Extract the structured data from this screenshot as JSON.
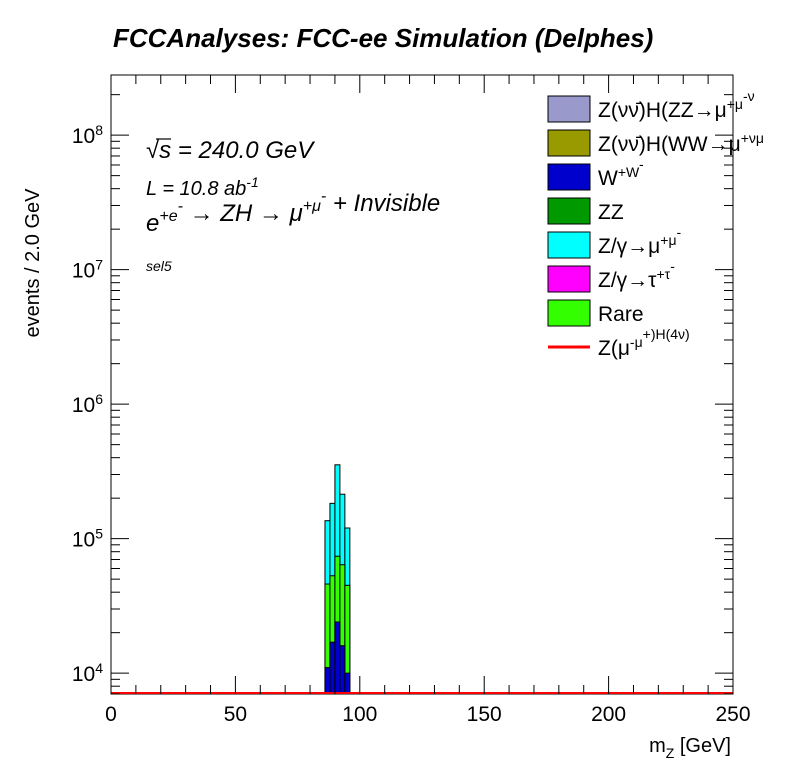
{
  "chart_data": {
    "type": "bar",
    "title": "FCCAnalyses: FCC-ee Simulation (Delphes)",
    "xlabel": "m_Z [GeV]",
    "ylabel": "events / 2.0 GeV",
    "xlim": [
      0,
      250
    ],
    "ylim": [
      7000,
      280000000
    ],
    "yscale": "log",
    "bin_width": 2.0,
    "x_ticks": [
      "0",
      "50",
      "100",
      "150",
      "200",
      "250"
    ],
    "y_ticks": [
      {
        "value": 10000,
        "label": "10^4"
      },
      {
        "value": 100000,
        "label": "10^5"
      },
      {
        "value": 1000000,
        "label": "10^6"
      },
      {
        "value": 10000000,
        "label": "10^7"
      },
      {
        "value": 100000000,
        "label": "10^8"
      }
    ],
    "annotations": {
      "sqrt_s": "√s = 240.0 GeV",
      "lumi": "L = 10.8 ab^-1",
      "process": "e^+e^- → ZH → μ^+μ^- + Invisible",
      "selection": "sel5"
    },
    "legend_position": "top-right",
    "bin_edges": [
      86,
      88,
      90,
      92,
      94,
      96
    ],
    "stack": [
      {
        "name": "W^+W^-",
        "color": "#0000cc",
        "values": [
          11000,
          17000,
          24000,
          16000,
          10000
        ]
      },
      {
        "name": "Rare",
        "color": "#33ff00",
        "values": [
          35000,
          36000,
          50000,
          48000,
          35000
        ]
      },
      {
        "name": "Z/γ→μ^+μ^-",
        "color": "#00ffff",
        "values": [
          90000,
          130000,
          280000,
          150000,
          75000
        ]
      }
    ],
    "signal": {
      "name": "Z(μ^-μ^+)H(4ν)",
      "color": "#ff0000",
      "values": [
        0,
        0,
        0,
        0,
        0
      ]
    },
    "legend": [
      {
        "label": "Z(νν̄)H(ZZ→μ^+μ^-ν",
        "color": "#9999cc",
        "kind": "box"
      },
      {
        "label": "Z(νν̄)H(WW→μ^+νμ",
        "color": "#999900",
        "kind": "box"
      },
      {
        "label": "W^+W^-",
        "color": "#0000cc",
        "kind": "box"
      },
      {
        "label": "ZZ",
        "color": "#009900",
        "kind": "box"
      },
      {
        "label": "Z/γ→μ^+μ^-",
        "color": "#00ffff",
        "kind": "box"
      },
      {
        "label": "Z/γ→τ^+τ^-",
        "color": "#ff00ff",
        "kind": "box"
      },
      {
        "label": "Rare",
        "color": "#33ff00",
        "kind": "box"
      },
      {
        "label": "Z(μ^-μ^+)H(4ν)",
        "color": "#ff0000",
        "kind": "line"
      }
    ]
  }
}
